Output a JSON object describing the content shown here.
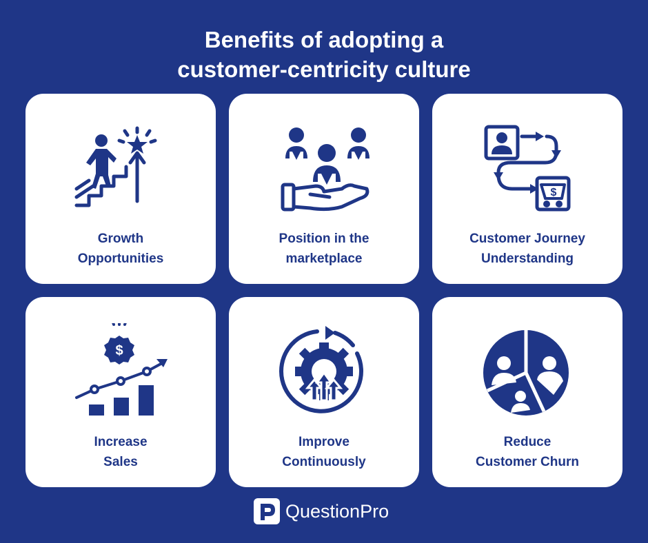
{
  "page": {
    "title_line1": "Benefits of adopting a",
    "title_line2": "customer-centricity culture",
    "background_color": "#1f3687",
    "accent_color": "#1f3687"
  },
  "cards": [
    {
      "label_line1": "Growth",
      "label_line2": "Opportunities",
      "icon": "growth-stairs-icon"
    },
    {
      "label_line1": "Position in the",
      "label_line2": "marketplace",
      "icon": "hand-people-icon"
    },
    {
      "label_line1": "Customer Journey",
      "label_line2": "Understanding",
      "icon": "customer-journey-icon"
    },
    {
      "label_line1": "Increase",
      "label_line2": "Sales",
      "icon": "sales-chart-icon"
    },
    {
      "label_line1": "Improve",
      "label_line2": "Continuously",
      "icon": "gear-cycle-icon"
    },
    {
      "label_line1": "Reduce",
      "label_line2": "Customer Churn",
      "icon": "churn-pie-icon"
    }
  ],
  "footer": {
    "brand_name": "QuestionPro",
    "brand_icon": "questionpro-logo-icon"
  }
}
